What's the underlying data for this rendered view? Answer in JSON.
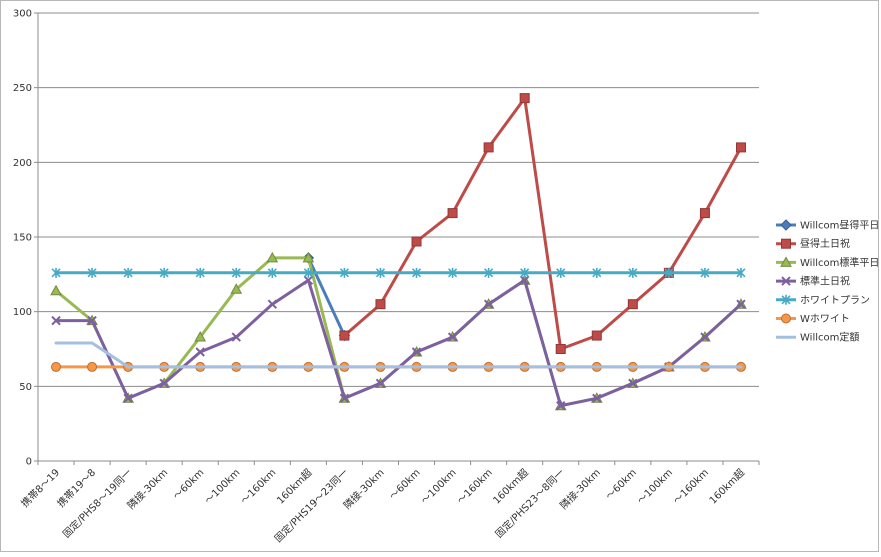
{
  "chart_data": {
    "type": "line",
    "title": "",
    "xlabel": "",
    "ylabel": "",
    "ylim": [
      0,
      300
    ],
    "yticks": [
      0,
      50,
      100,
      150,
      200,
      250,
      300
    ],
    "grid": "horizontal",
    "legend_position": "right",
    "categories": [
      "携帯8～19",
      "携帯19～8",
      "固定/PHS8～19同一",
      "隣接-30km",
      "～60km",
      "～100km",
      "～160km",
      "160km超",
      "固定/PHS19～23同一",
      "隣接-30km",
      "～60km",
      "～100km",
      "～160km",
      "160km超",
      "固定/PHS23～8同一",
      "隣接-30km",
      "～60km",
      "～100km",
      "～160km",
      "160km超"
    ],
    "series": [
      {
        "name": "Willcom昼得平日",
        "color": "#4a7ebb",
        "marker": "diamond",
        "values": [
          null,
          null,
          null,
          null,
          null,
          null,
          null,
          136,
          84,
          null,
          null,
          null,
          null,
          null,
          null,
          null,
          null,
          null,
          null,
          null
        ]
      },
      {
        "name": "昼得土日祝",
        "color": "#be4b48",
        "marker": "square",
        "values": [
          null,
          null,
          null,
          null,
          null,
          null,
          null,
          null,
          84,
          105,
          147,
          166,
          210,
          243,
          75,
          84,
          105,
          126,
          166,
          210
        ]
      },
      {
        "name": "Willcom標準平日",
        "color": "#98b954",
        "marker": "triangle",
        "values": [
          114,
          94,
          42,
          52,
          83,
          115,
          136,
          136,
          42,
          52,
          73,
          83,
          105,
          121,
          37,
          42,
          52,
          63,
          83,
          105
        ]
      },
      {
        "name": "標準土日祝",
        "color": "#7d60a0",
        "marker": "x",
        "values": [
          94,
          94,
          42,
          52,
          73,
          83,
          105,
          121,
          42,
          52,
          73,
          83,
          105,
          121,
          37,
          42,
          52,
          63,
          83,
          105
        ]
      },
      {
        "name": "ホワイトプラン",
        "color": "#46aac5",
        "marker": "star",
        "values": [
          126,
          126,
          126,
          126,
          126,
          126,
          126,
          126,
          126,
          126,
          126,
          126,
          126,
          126,
          126,
          126,
          126,
          126,
          126,
          126
        ]
      },
      {
        "name": "Wホワイト",
        "color": "#f79646",
        "marker": "circle",
        "values": [
          63,
          63,
          63,
          63,
          63,
          63,
          63,
          63,
          63,
          63,
          63,
          63,
          63,
          63,
          63,
          63,
          63,
          63,
          63,
          63
        ]
      },
      {
        "name": "Willcom定額",
        "color": "#a5bfe2",
        "marker": "dash",
        "values": [
          79,
          79,
          63,
          63,
          63,
          63,
          63,
          63,
          63,
          63,
          63,
          63,
          63,
          63,
          63,
          63,
          63,
          63,
          63,
          63
        ]
      }
    ]
  }
}
